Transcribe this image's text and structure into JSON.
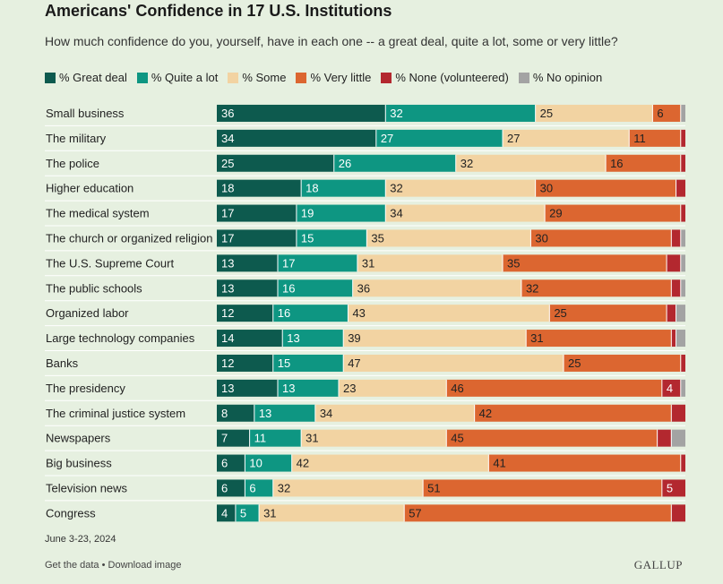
{
  "header": {
    "title": "Americans' Confidence in 17 U.S. Institutions",
    "subtitle": "How much confidence do you, yourself, have in each one -- a great deal, quite a lot, some or very little?"
  },
  "legend": [
    {
      "label": "% Great deal",
      "color": "#0d5a4e"
    },
    {
      "label": "% Quite a lot",
      "color": "#0e9682"
    },
    {
      "label": "% Some",
      "color": "#f2d3a2"
    },
    {
      "label": "% Very little",
      "color": "#dc6630"
    },
    {
      "label": "% None (volunteered)",
      "color": "#b3282f"
    },
    {
      "label": "% No opinion",
      "color": "#a3a3a3"
    }
  ],
  "chart_data": {
    "type": "bar",
    "orientation": "horizontal",
    "stacked": true,
    "categories": [
      "Small business",
      "The military",
      "The police",
      "Higher education",
      "The medical system",
      "The church or organized religion",
      "The U.S. Supreme Court",
      "The public schools",
      "Organized labor",
      "Large technology companies",
      "Banks",
      "The presidency",
      "The criminal justice system",
      "Newspapers",
      "Big business",
      "Television news",
      "Congress"
    ],
    "series": [
      {
        "name": "% Great deal",
        "values": [
          36,
          34,
          25,
          18,
          17,
          17,
          13,
          13,
          12,
          14,
          12,
          13,
          8,
          7,
          6,
          6,
          4
        ]
      },
      {
        "name": "% Quite a lot",
        "values": [
          32,
          27,
          26,
          18,
          19,
          15,
          17,
          16,
          16,
          13,
          15,
          13,
          13,
          11,
          10,
          6,
          5
        ]
      },
      {
        "name": "% Some",
        "values": [
          25,
          27,
          32,
          32,
          34,
          35,
          31,
          36,
          43,
          39,
          47,
          23,
          34,
          31,
          42,
          32,
          31
        ]
      },
      {
        "name": "% Very little",
        "values": [
          6,
          11,
          16,
          30,
          29,
          30,
          35,
          32,
          25,
          31,
          25,
          46,
          42,
          45,
          41,
          51,
          57
        ]
      },
      {
        "name": "% None (volunteered)",
        "values": [
          0,
          1,
          1,
          2,
          1,
          2,
          3,
          2,
          2,
          1,
          1,
          4,
          3,
          3,
          1,
          5,
          3
        ]
      },
      {
        "name": "% No opinion",
        "values": [
          1,
          0,
          0,
          0,
          0,
          1,
          1,
          1,
          2,
          2,
          0,
          1,
          0,
          3,
          0,
          0,
          0
        ]
      }
    ],
    "xlim": [
      0,
      100
    ],
    "value_labels_min": 4,
    "grid": false,
    "legend_position": "top"
  },
  "footer": {
    "date": "June 3-23, 2024",
    "get_data": "Get the data",
    "separator": " • ",
    "download": "Download image",
    "logo": "GALLUP"
  }
}
